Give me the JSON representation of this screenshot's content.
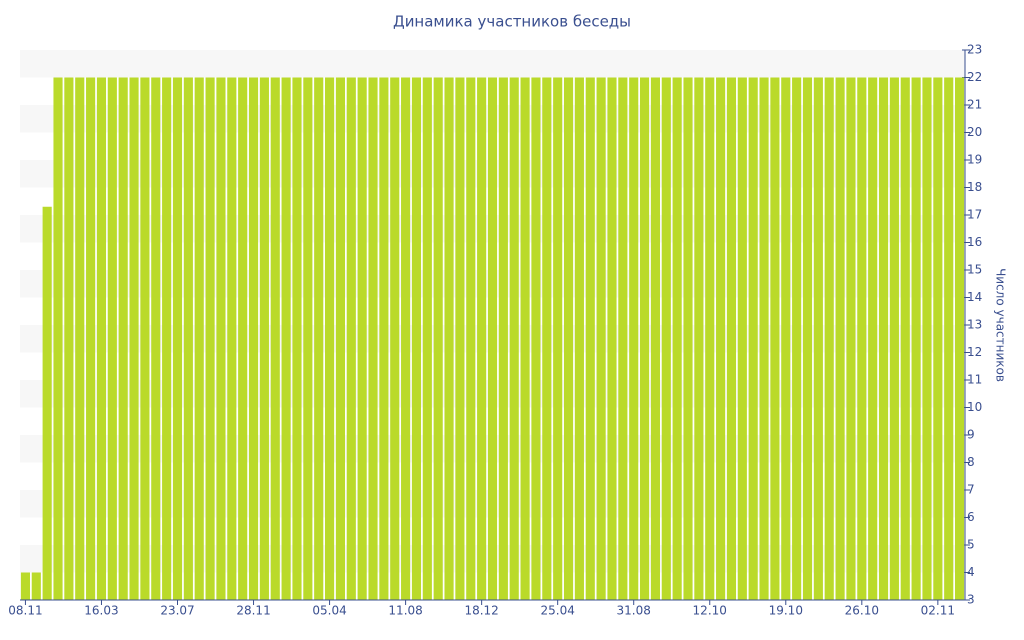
{
  "chart_data": {
    "type": "bar",
    "title": "Динамика участников беседы",
    "y_label": "Число участников",
    "categories": [
      "08.11",
      null,
      null,
      null,
      null,
      null,
      null,
      "16.03",
      null,
      null,
      null,
      null,
      null,
      null,
      "23.07",
      null,
      null,
      null,
      null,
      null,
      null,
      "28.11",
      null,
      null,
      null,
      null,
      null,
      null,
      "05.04",
      null,
      null,
      null,
      null,
      null,
      null,
      "11.08",
      null,
      null,
      null,
      null,
      null,
      null,
      "18.12",
      null,
      null,
      null,
      null,
      null,
      null,
      "25.04",
      null,
      null,
      null,
      null,
      null,
      null,
      "31.08",
      null,
      null,
      null,
      null,
      null,
      null,
      "12.10",
      null,
      null,
      null,
      null,
      null,
      null,
      "19.10",
      null,
      null,
      null,
      null,
      null,
      null,
      "26.10",
      null,
      null,
      null,
      null,
      null,
      null,
      "02.11",
      null,
      null
    ],
    "values": [
      4,
      4,
      17.3,
      22,
      22,
      22,
      22,
      22,
      22,
      22,
      22,
      22,
      22,
      22,
      22,
      22,
      22,
      22,
      22,
      22,
      22,
      22,
      22,
      22,
      22,
      22,
      22,
      22,
      22,
      22,
      22,
      22,
      22,
      22,
      22,
      22,
      22,
      22,
      22,
      22,
      22,
      22,
      22,
      22,
      22,
      22,
      22,
      22,
      22,
      22,
      22,
      22,
      22,
      22,
      22,
      22,
      22,
      22,
      22,
      22,
      22,
      22,
      22,
      22,
      22,
      22,
      22,
      22,
      22,
      22,
      22,
      22,
      22,
      22,
      22,
      22,
      22,
      22,
      22,
      22,
      22,
      22,
      22,
      22,
      22,
      22,
      22
    ],
    "color": "#bada2a",
    "ylim": [
      3,
      23
    ],
    "yticks": [
      3,
      4,
      5,
      6,
      7,
      8,
      9,
      10,
      11,
      12,
      13,
      14,
      15,
      16,
      17,
      18,
      19,
      20,
      21,
      22,
      23
    ],
    "y_axis_side": "right",
    "stripes": true
  }
}
